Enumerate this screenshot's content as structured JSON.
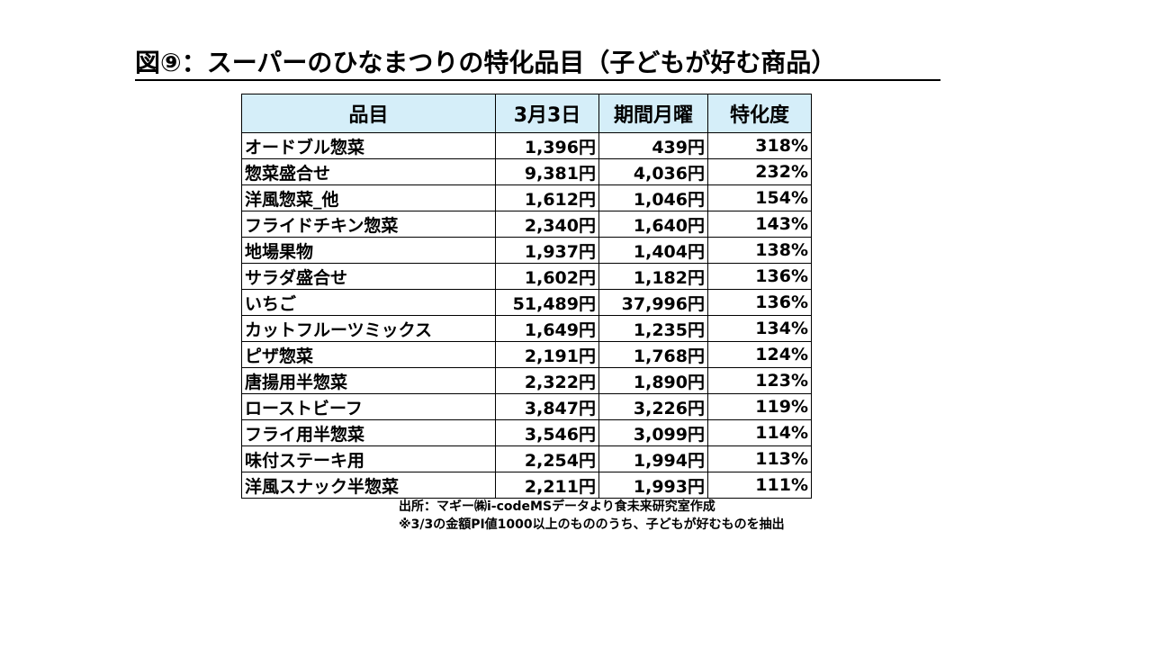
{
  "header": {
    "title": "図⑨：スーパーのひなまつりの特化品目（子どもが好む商品）"
  },
  "table": {
    "columns": [
      "品目",
      "3月3日",
      "期間月曜",
      "特化度"
    ],
    "rows": [
      [
        "オードブル惣菜",
        "1,396円",
        "439円",
        "318%"
      ],
      [
        "惣菜盛合せ",
        "9,381円",
        "4,036円",
        "232%"
      ],
      [
        "洋風惣菜_他",
        "1,612円",
        "1,046円",
        "154%"
      ],
      [
        "フライドチキン惣菜",
        "2,340円",
        "1,640円",
        "143%"
      ],
      [
        "地場果物",
        "1,937円",
        "1,404円",
        "138%"
      ],
      [
        "サラダ盛合せ",
        "1,602円",
        "1,182円",
        "136%"
      ],
      [
        "いちご",
        "51,489円",
        "37,996円",
        "136%"
      ],
      [
        "カットフルーツミックス",
        "1,649円",
        "1,235円",
        "134%"
      ],
      [
        "ピザ惣菜",
        "2,191円",
        "1,768円",
        "124%"
      ],
      [
        "唐揚用半惣菜",
        "2,322円",
        "1,890円",
        "123%"
      ],
      [
        "ローストビーフ",
        "3,847円",
        "3,226円",
        "119%"
      ],
      [
        "フライ用半惣菜",
        "3,546円",
        "3,099円",
        "114%"
      ],
      [
        "味付ステーキ用",
        "2,254円",
        "1,994円",
        "113%"
      ],
      [
        "洋風スナック半惣菜",
        "2,211円",
        "1,993円",
        "111%"
      ]
    ]
  },
  "notes": [
    "出所：マギー㈱i-codeMSデータより食未来研究室作成",
    "※3/3の金額PI値1000以上のもののうち、子どもが好むものを抽出"
  ]
}
